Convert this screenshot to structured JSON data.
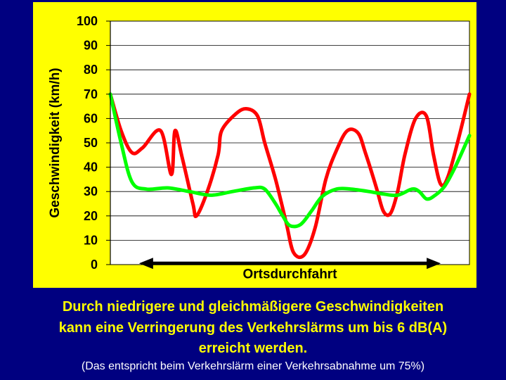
{
  "colors": {
    "background": "#000080",
    "panel": "#ffff00",
    "plot": "#ffffff",
    "caption": "#ffff00",
    "note": "#ffffff",
    "arrow": "#000000"
  },
  "chart_data": {
    "type": "line",
    "title": "",
    "xlabel": "",
    "ylabel": "Geschwindigkeit (km/h)",
    "ylim": [
      0,
      100
    ],
    "yticks": [
      "0",
      "10",
      "20",
      "30",
      "40",
      "50",
      "60",
      "70",
      "80",
      "90",
      "100"
    ],
    "grid": true,
    "legend": "none",
    "x_axis_labels": "none",
    "xlim": [
      0,
      100
    ],
    "series": [
      {
        "color": "#ff0000",
        "points": [
          [
            0,
            70
          ],
          [
            3,
            55
          ],
          [
            6,
            46
          ],
          [
            9,
            48
          ],
          [
            14,
            55
          ],
          [
            17,
            37
          ],
          [
            18,
            55
          ],
          [
            20,
            44
          ],
          [
            23,
            25
          ],
          [
            24,
            20
          ],
          [
            27,
            30
          ],
          [
            30,
            45
          ],
          [
            31,
            55
          ],
          [
            35,
            62
          ],
          [
            38,
            64
          ],
          [
            41,
            61
          ],
          [
            43,
            50
          ],
          [
            46,
            35
          ],
          [
            49,
            17
          ],
          [
            51,
            5
          ],
          [
            54,
            4
          ],
          [
            57,
            15
          ],
          [
            60,
            35
          ],
          [
            63,
            47
          ],
          [
            66,
            55
          ],
          [
            69,
            54
          ],
          [
            71,
            46
          ],
          [
            74,
            32
          ],
          [
            76,
            22
          ],
          [
            78,
            21
          ],
          [
            80,
            30
          ],
          [
            82,
            45
          ],
          [
            85,
            60
          ],
          [
            88,
            61
          ],
          [
            90,
            45
          ],
          [
            92,
            33
          ],
          [
            94,
            36
          ],
          [
            97,
            52
          ],
          [
            100,
            70
          ]
        ]
      },
      {
        "color": "#00ff00",
        "points": [
          [
            0,
            70
          ],
          [
            3,
            50
          ],
          [
            6,
            34
          ],
          [
            10,
            31
          ],
          [
            16,
            31.5
          ],
          [
            22,
            30
          ],
          [
            28,
            28.5
          ],
          [
            34,
            30
          ],
          [
            40,
            31.5
          ],
          [
            43,
            31
          ],
          [
            46,
            25
          ],
          [
            48,
            20
          ],
          [
            50,
            16
          ],
          [
            53,
            16.5
          ],
          [
            56,
            22
          ],
          [
            59,
            28
          ],
          [
            63,
            31
          ],
          [
            67,
            31
          ],
          [
            72,
            30
          ],
          [
            76,
            29
          ],
          [
            80,
            28.5
          ],
          [
            84,
            31
          ],
          [
            86,
            30
          ],
          [
            88,
            27
          ],
          [
            90,
            28
          ],
          [
            93,
            32
          ],
          [
            96,
            40
          ],
          [
            100,
            53
          ]
        ]
      }
    ],
    "annotation": {
      "text": "Ortsdurchfahrt",
      "from_x": 8,
      "to_x": 92,
      "y": 0.5
    }
  },
  "caption": {
    "line1": "Durch niedrigere und gleichmäßigere Geschwindigkeiten",
    "line2": "kann eine Verringerung des Verkehrslärms um bis 6 dB(A)",
    "line3": "erreicht werden.",
    "note": "(Das entspricht beim Verkehrslärm einer Verkehrsabnahme um 75%)"
  }
}
